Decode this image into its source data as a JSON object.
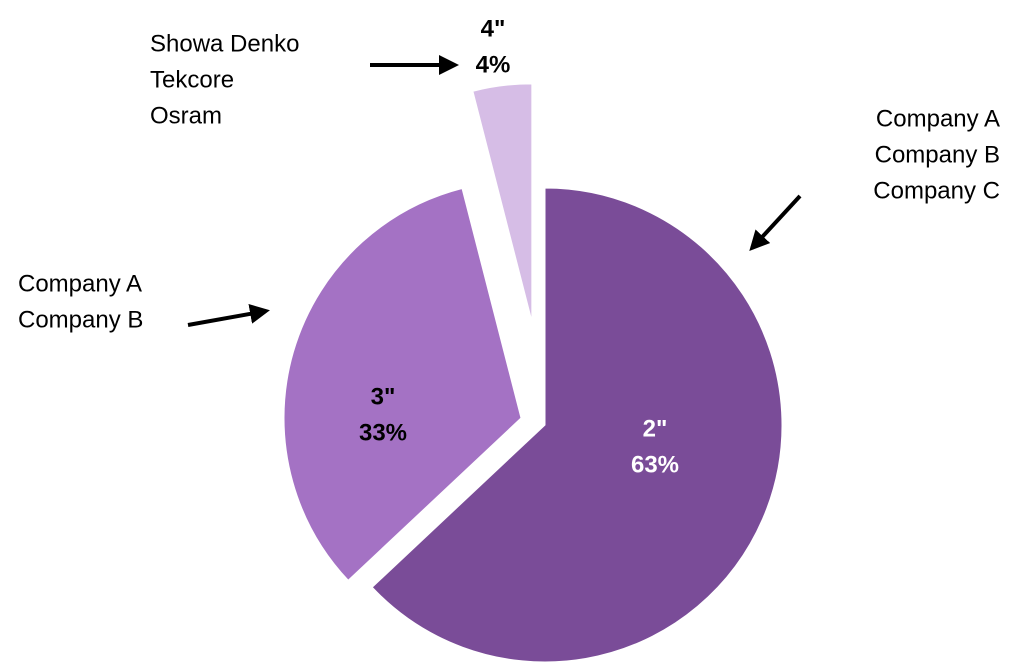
{
  "chart_data": {
    "type": "pie",
    "categories": [
      "2\"",
      "3\"",
      "4\""
    ],
    "values": [
      63,
      33,
      4
    ],
    "value_labels": [
      "63%",
      "33%",
      "4%"
    ],
    "colors": [
      "#7a4c98",
      "#a472c4",
      "#d6bde6"
    ],
    "label_colors": [
      "#ffffff",
      "#000000",
      "#000000"
    ],
    "annotations": [
      [
        "Company A",
        "Company B",
        "Company C"
      ],
      [
        "Company A",
        "Company B"
      ],
      [
        "Showa Denko",
        "Tekcore",
        "Osram"
      ]
    ]
  }
}
